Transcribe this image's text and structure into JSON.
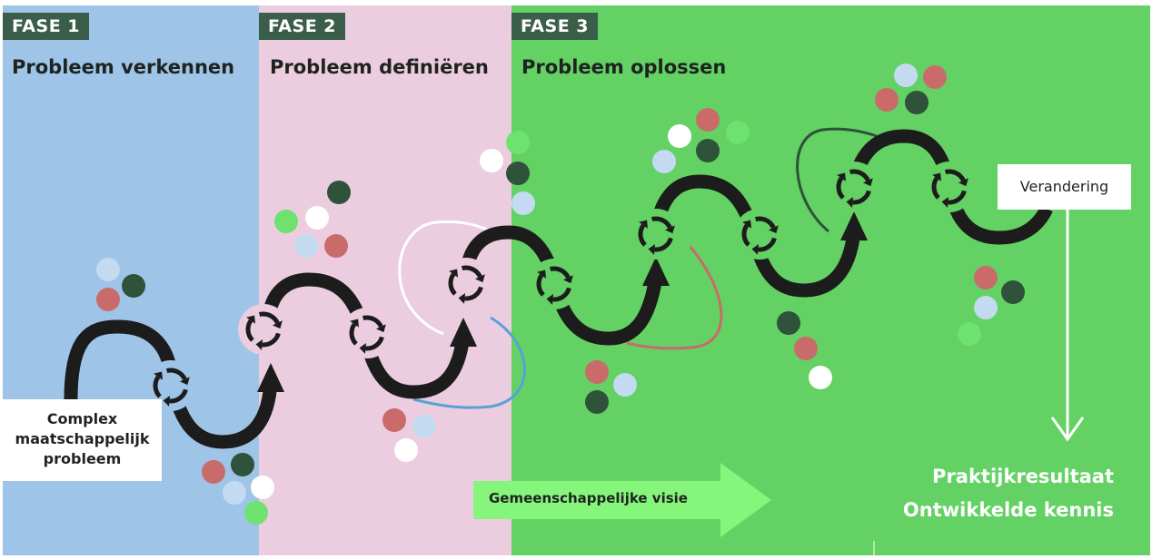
{
  "phases": [
    {
      "tag": "FASE 1",
      "title": "Probleem verkennen",
      "color": "#9ec4e7"
    },
    {
      "tag": "FASE 2",
      "title": "Probleem definiëren",
      "color": "#ebcddf"
    },
    {
      "tag": "FASE 3",
      "title": "Probleem oplossen",
      "color": "#63d163"
    }
  ],
  "start_box": {
    "line1": "Complex",
    "line2": "maatschappelijk",
    "line3": "probleem"
  },
  "end_box": "Verandering",
  "vision_arrow": "Gemeenschappelijke visie",
  "results": {
    "line1": "Praktijkresultaat",
    "line2": "Ontwikkelde kennis"
  },
  "colors": {
    "tag_bg": "#3b5e4b",
    "path": "#1c1c1c",
    "dot_pink": "#c96b6b",
    "dot_green": "#6ee26e",
    "dot_dark": "#2f523a",
    "dot_lightblue": "#c4daf1",
    "dot_white": "#ffffff",
    "vision_arrow": "#86f57c"
  }
}
